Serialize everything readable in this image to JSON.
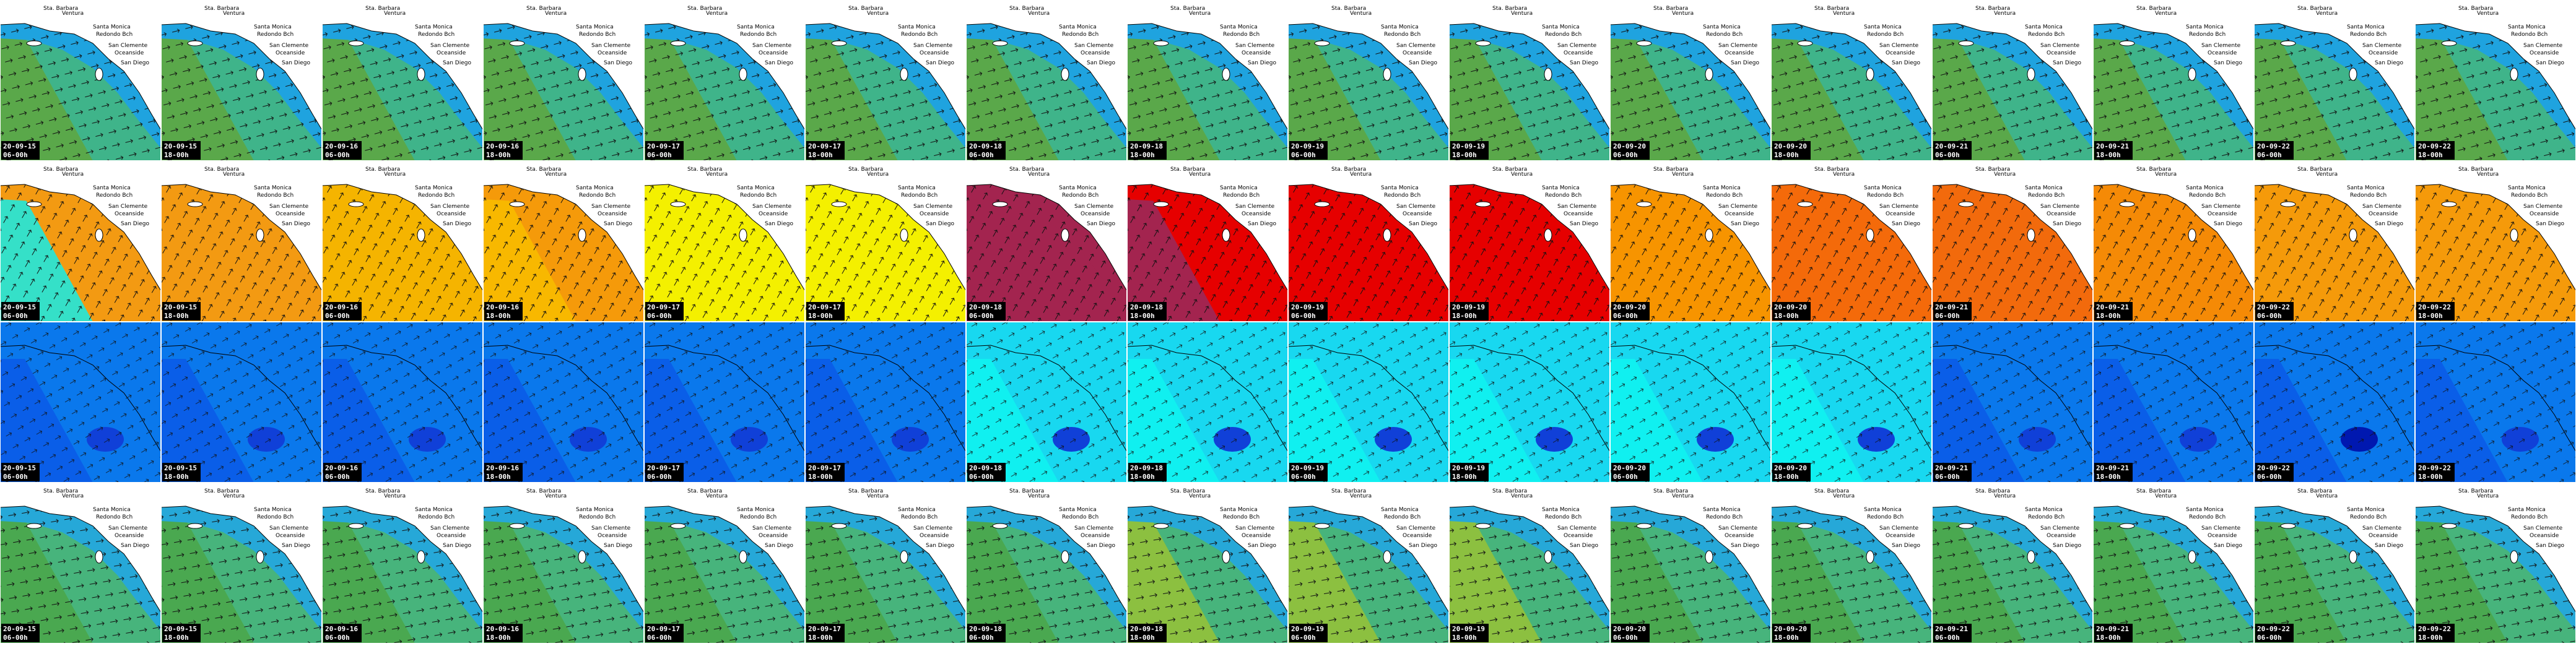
{
  "places": [
    "Sta. Barbara",
    "Ventura",
    "Santa Monica",
    "Redondo Bch",
    "San Clemente",
    "Oceanside",
    "San Diego"
  ],
  "frames": [
    {
      "date": "20-09-15",
      "time": "06-00h"
    },
    {
      "date": "20-09-15",
      "time": "18-00h"
    },
    {
      "date": "20-09-16",
      "time": "06-00h"
    },
    {
      "date": "20-09-16",
      "time": "18-00h"
    },
    {
      "date": "20-09-17",
      "time": "06-00h"
    },
    {
      "date": "20-09-17",
      "time": "18-00h"
    },
    {
      "date": "20-09-18",
      "time": "06-00h"
    },
    {
      "date": "20-09-18",
      "time": "18-00h"
    },
    {
      "date": "20-09-19",
      "time": "06-00h"
    },
    {
      "date": "20-09-19",
      "time": "18-00h"
    },
    {
      "date": "20-09-20",
      "time": "06-00h"
    },
    {
      "date": "20-09-20",
      "time": "18-00h"
    },
    {
      "date": "20-09-21",
      "time": "06-00h"
    },
    {
      "date": "20-09-21",
      "time": "18-00h"
    },
    {
      "date": "20-09-22",
      "time": "06-00h"
    },
    {
      "date": "20-09-22",
      "time": "18-00h"
    }
  ]
}
